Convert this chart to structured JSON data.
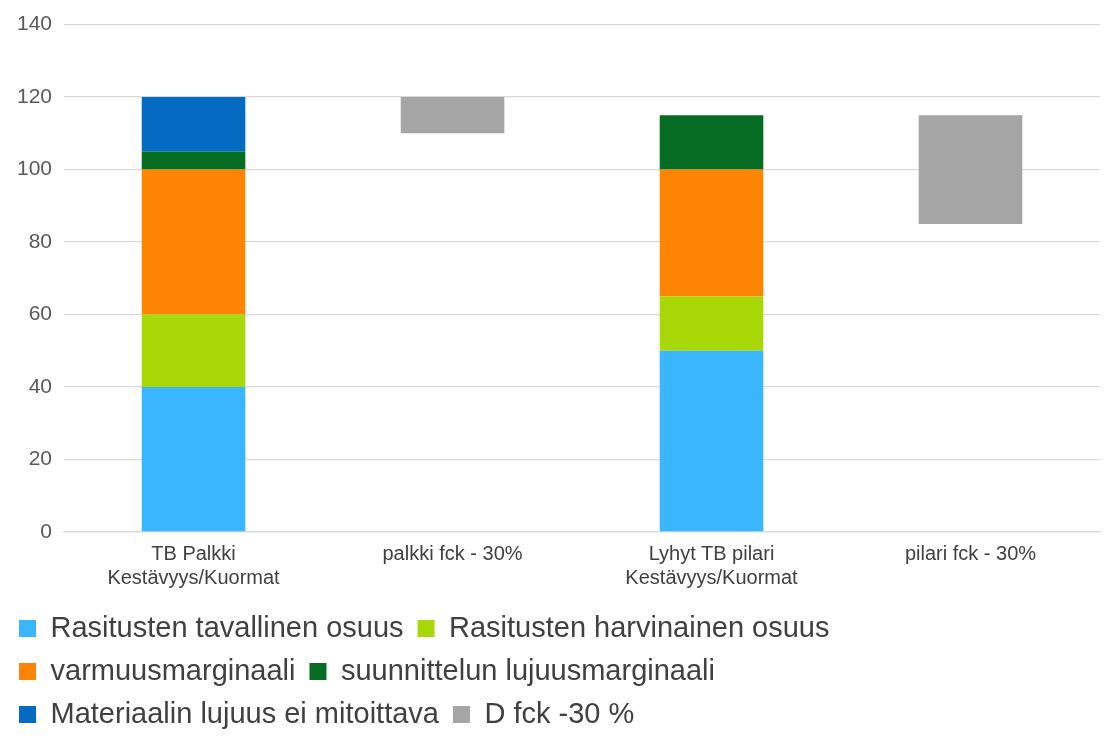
{
  "chart_data": {
    "type": "bar",
    "stacked": true,
    "categories": [
      "TB Palkki Kestävyys/Kuormat",
      "palkki fck - 30%",
      "Lyhyt TB pilari Kestävyys/Kuormat",
      "pilari fck - 30%"
    ],
    "series": [
      {
        "name": "Rasitusten tavallinen osuus",
        "color": "#39b6fd",
        "values": [
          40,
          null,
          50,
          null
        ]
      },
      {
        "name": "Rasitusten harvinainen osuus",
        "color": "#a9d808",
        "values": [
          20,
          null,
          15,
          null
        ]
      },
      {
        "name": "varmuusmarginaali",
        "color": "#fd8503",
        "values": [
          40,
          null,
          35,
          null
        ]
      },
      {
        "name": "suunnittelun lujuusmarginaali",
        "color": "#046d22",
        "values": [
          5,
          null,
          15,
          null
        ]
      },
      {
        "name": "Materiaalin lujuus ei mitoittava",
        "color": "#036cc2",
        "values": [
          15,
          null,
          null,
          null
        ]
      },
      {
        "name": "D fck -30 %",
        "color": "#a5a5a5",
        "base": [
          null,
          110,
          null,
          85
        ],
        "values": [
          null,
          10,
          null,
          30
        ]
      }
    ],
    "ylim": [
      0,
      140
    ],
    "yticks": [
      0,
      20,
      40,
      60,
      80,
      100,
      120,
      140
    ],
    "grid": "y",
    "legend": "bottom"
  }
}
